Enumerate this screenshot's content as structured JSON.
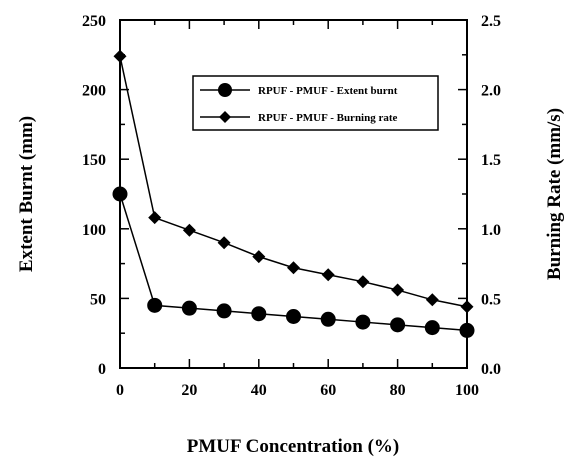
{
  "chart_data": {
    "type": "line",
    "xlabel": "PMUF Concentration (%)",
    "ylabel_left": "Extent Burnt (mm)",
    "ylabel_right": "Burning Rate (mm/s)",
    "xlim": [
      0,
      100
    ],
    "ylim_left": [
      0,
      250
    ],
    "ylim_right": [
      0.0,
      2.5
    ],
    "x_ticks": [
      "0",
      "20",
      "40",
      "60",
      "80",
      "100"
    ],
    "y_left_ticks": [
      "0",
      "50",
      "100",
      "150",
      "200",
      "250"
    ],
    "y_right_ticks": [
      "0.0",
      "0.5",
      "1.0",
      "1.5",
      "2.0",
      "2.5"
    ],
    "grid": false,
    "legend_position": "top-right",
    "x": [
      0,
      10,
      20,
      30,
      40,
      50,
      60,
      70,
      80,
      90,
      100
    ],
    "series": [
      {
        "name": "RPUF - PMUF - Extent burnt",
        "axis": "left",
        "marker": "circle",
        "values": [
          125,
          45,
          43,
          41,
          39,
          37,
          35,
          33,
          31,
          29,
          27
        ]
      },
      {
        "name": "RPUF - PMUF - Burning rate",
        "axis": "right",
        "marker": "diamond",
        "values": [
          2.24,
          1.08,
          0.99,
          0.9,
          0.8,
          0.72,
          0.67,
          0.62,
          0.56,
          0.49,
          0.44
        ]
      }
    ]
  }
}
